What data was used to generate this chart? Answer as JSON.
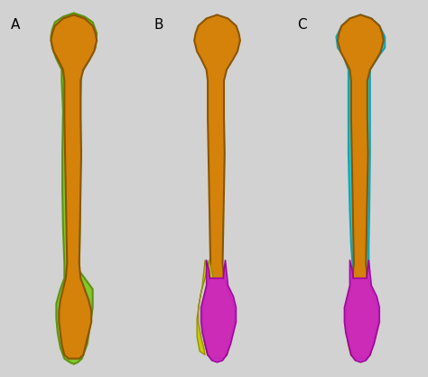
{
  "fig_bg": "#d2d2d2",
  "panel_labels": [
    "A",
    "B",
    "C"
  ],
  "label_fontsize": 11,
  "label_color": "black",
  "bone_orange": "#D4820A",
  "bone_dark": "#8B5500",
  "green_color": "#7EC820",
  "yellow_color": "#C8C800",
  "magenta_color": "#CC22CC",
  "cyan_color": "#20C8D0",
  "panel_bg": "#d2d2d2"
}
